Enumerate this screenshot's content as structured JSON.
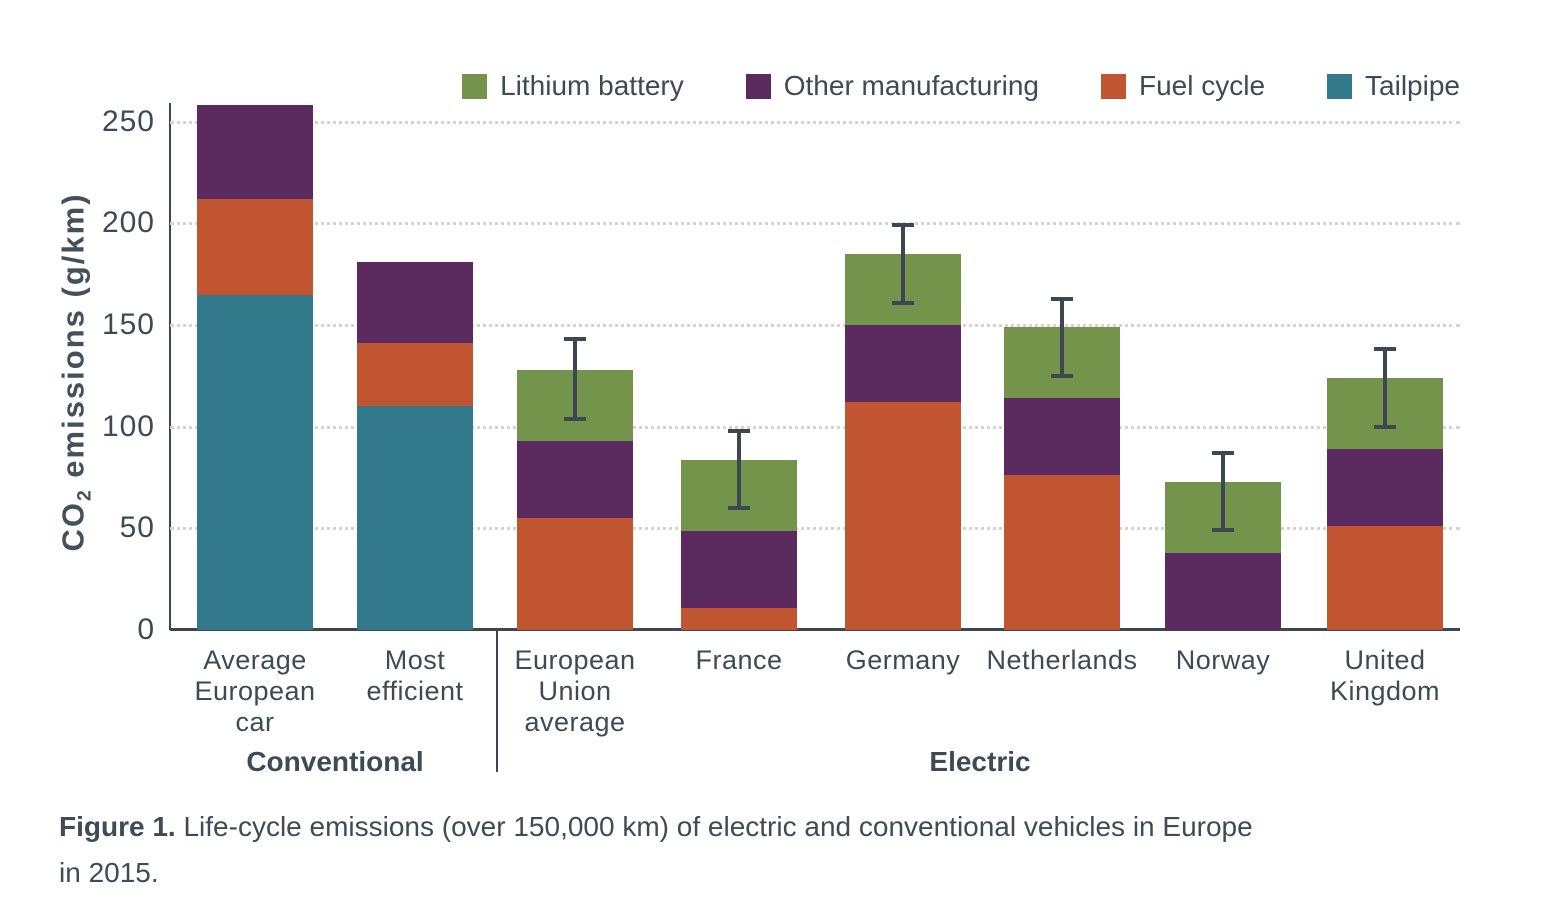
{
  "colors": {
    "lithium_battery": "#74944c",
    "other_manufacturing": "#5b2a5f",
    "fuel_cycle": "#c15431",
    "tailpipe": "#33798c",
    "axis_dark": "#3d4752",
    "grid_gray": "#d4d4d4",
    "text": "#3e4a54"
  },
  "legend": {
    "items": [
      {
        "key": "lithium_battery",
        "label": "Lithium battery"
      },
      {
        "key": "other_manufacturing",
        "label": "Other manufacturing"
      },
      {
        "key": "fuel_cycle",
        "label": "Fuel cycle"
      },
      {
        "key": "tailpipe",
        "label": "Tailpipe"
      }
    ]
  },
  "y_axis_title": {
    "prefix": "CO",
    "sub": "2",
    "suffix": " emissions (g/km)"
  },
  "chart_data": {
    "type": "bar",
    "stacked": true,
    "title": "",
    "xlabel": "",
    "ylabel": "CO2 emissions (g/km)",
    "ylim": [
      0,
      260
    ],
    "y_ticks": [
      0,
      50,
      100,
      150,
      200,
      250
    ],
    "grid": "horizontal dotted",
    "legend_position": "top",
    "segment_order_bottom_to_top": [
      "tailpipe",
      "fuel_cycle",
      "other_manufacturing",
      "lithium_battery"
    ],
    "series": [
      {
        "name": "Tailpipe",
        "key": "tailpipe",
        "values": [
          165,
          110,
          0,
          0,
          0,
          0,
          0,
          0
        ]
      },
      {
        "name": "Fuel cycle",
        "key": "fuel_cycle",
        "values": [
          47,
          31,
          55,
          11,
          112,
          76,
          0,
          51
        ]
      },
      {
        "name": "Other manufacturing",
        "key": "other_manufacturing",
        "values": [
          46,
          40,
          38,
          38,
          38,
          38,
          38,
          38
        ]
      },
      {
        "name": "Lithium battery",
        "key": "lithium_battery",
        "values": [
          0,
          0,
          35,
          35,
          35,
          35,
          35,
          35
        ]
      }
    ],
    "categories": [
      {
        "id": "average-european-car",
        "label": "Average\nEuropean\ncar",
        "group": "Conventional",
        "segments": {
          "tailpipe": 165,
          "fuel_cycle": 47,
          "other_manufacturing": 46,
          "lithium_battery": 0
        },
        "total": 258,
        "error_bar": null
      },
      {
        "id": "most-efficient",
        "label": "Most\nefficient",
        "group": "Conventional",
        "segments": {
          "tailpipe": 110,
          "fuel_cycle": 31,
          "other_manufacturing": 40,
          "lithium_battery": 0
        },
        "total": 181,
        "error_bar": null
      },
      {
        "id": "european-union-average",
        "label": "European\nUnion\naverage",
        "group": "Electric",
        "segments": {
          "tailpipe": 0,
          "fuel_cycle": 55,
          "other_manufacturing": 38,
          "lithium_battery": 35
        },
        "total": 128,
        "error_bar": [
          103,
          144
        ]
      },
      {
        "id": "france",
        "label": "France",
        "group": "Electric",
        "segments": {
          "tailpipe": 0,
          "fuel_cycle": 11,
          "other_manufacturing": 38,
          "lithium_battery": 35
        },
        "total": 84,
        "error_bar": [
          59,
          99
        ]
      },
      {
        "id": "germany",
        "label": "Germany",
        "group": "Electric",
        "segments": {
          "tailpipe": 0,
          "fuel_cycle": 112,
          "other_manufacturing": 38,
          "lithium_battery": 35
        },
        "total": 185,
        "error_bar": [
          160,
          200
        ]
      },
      {
        "id": "netherlands",
        "label": "Netherlands",
        "group": "Electric",
        "segments": {
          "tailpipe": 0,
          "fuel_cycle": 76,
          "other_manufacturing": 38,
          "lithium_battery": 35
        },
        "total": 149,
        "error_bar": [
          124,
          164
        ]
      },
      {
        "id": "norway",
        "label": "Norway",
        "group": "Electric",
        "segments": {
          "tailpipe": 0,
          "fuel_cycle": 0,
          "other_manufacturing": 38,
          "lithium_battery": 35
        },
        "total": 73,
        "error_bar": [
          48,
          88
        ]
      },
      {
        "id": "united-kingdom",
        "label": "United\nKingdom",
        "group": "Electric",
        "segments": {
          "tailpipe": 0,
          "fuel_cycle": 51,
          "other_manufacturing": 38,
          "lithium_battery": 35
        },
        "total": 124,
        "error_bar": [
          99,
          139
        ]
      }
    ]
  },
  "groups": [
    {
      "label": "Conventional",
      "categories": [
        "average-european-car",
        "most-efficient"
      ]
    },
    {
      "label": "Electric",
      "categories": [
        "european-union-average",
        "france",
        "germany",
        "netherlands",
        "norway",
        "united-kingdom"
      ]
    }
  ],
  "caption": {
    "bold": "Figure 1.",
    "text": " Life-cycle emissions (over 150,000 km) of electric and conventional vehicles in Europe\nin 2015."
  }
}
